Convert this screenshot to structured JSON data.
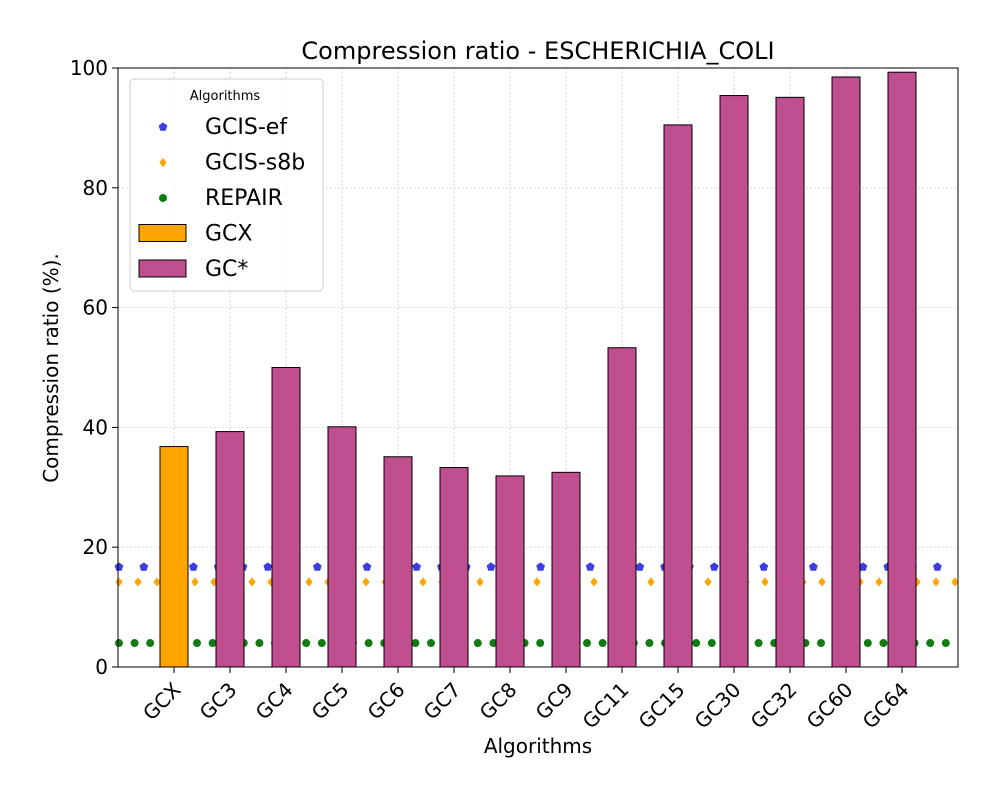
{
  "chart_data": {
    "type": "bar",
    "title": "Compression ratio -  ESCHERICHIA_COLI",
    "xlabel": "Algorithms",
    "ylabel": "Compression ratio (%).",
    "categories": [
      "GCX",
      "GC3",
      "GC4",
      "GC5",
      "GC6",
      "GC7",
      "GC8",
      "GC9",
      "GC11",
      "GC15",
      "GC30",
      "GC32",
      "GC60",
      "GC64"
    ],
    "values": [
      36.8,
      39.3,
      50.0,
      40.1,
      35.1,
      33.3,
      31.9,
      32.5,
      53.3,
      90.5,
      95.4,
      95.1,
      98.5,
      99.3
    ],
    "bar_series": [
      {
        "name": "GCX",
        "color": "#ffa500",
        "categories": [
          "GCX"
        ]
      },
      {
        "name": "GC*",
        "color": "#bf4f8f",
        "categories": [
          "GC3",
          "GC4",
          "GC5",
          "GC6",
          "GC7",
          "GC8",
          "GC9",
          "GC11",
          "GC15",
          "GC30",
          "GC32",
          "GC60",
          "GC64"
        ]
      }
    ],
    "reference_lines": [
      {
        "name": "GCIS-ef",
        "value": 16.7,
        "color": "#3d3de0",
        "marker": "pentagon"
      },
      {
        "name": "GCIS-s8b",
        "value": 14.2,
        "color": "#ffa500",
        "marker": "diamond"
      },
      {
        "name": "REPAIR",
        "value": 4.0,
        "color": "#107c10",
        "marker": "circle"
      }
    ],
    "ylim": [
      0,
      100
    ],
    "yticks": [
      0,
      20,
      40,
      60,
      80,
      100
    ],
    "grid": true,
    "legend": {
      "title": "Algorithms",
      "placement": "top-left"
    }
  }
}
